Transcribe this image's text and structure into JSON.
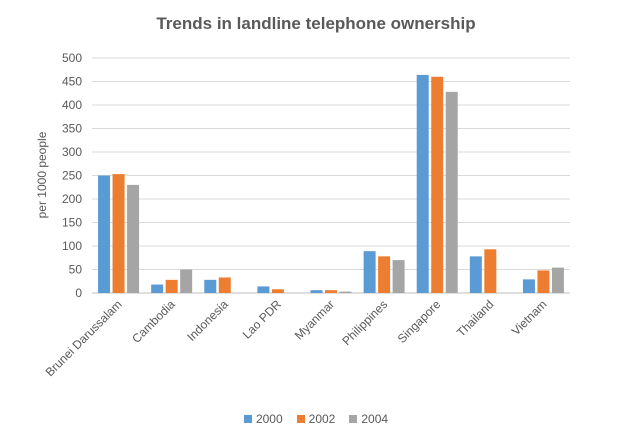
{
  "chart_data": {
    "type": "bar",
    "title": "Trends in landline telephone ownership",
    "xlabel": "",
    "ylabel": "per 1000 people",
    "ylim": [
      0,
      500
    ],
    "yticks": [
      0,
      50,
      100,
      150,
      200,
      250,
      300,
      350,
      400,
      450,
      500
    ],
    "grid": true,
    "legend_placement": "bottom",
    "categories": [
      "Brunei Darussalam",
      "Cambodia",
      "Indonesia",
      "Lao PDR",
      "Myanmar",
      "Philippines",
      "Singapore",
      "Thailand",
      "Vietnam"
    ],
    "series": [
      {
        "name": "2000",
        "color": "#5B9BD5",
        "values": [
          250,
          18,
          28,
          14,
          6,
          89,
          464,
          78,
          29
        ]
      },
      {
        "name": "2002",
        "color": "#ED7D31",
        "values": [
          253,
          28,
          33,
          8,
          6,
          78,
          460,
          93,
          48
        ]
      },
      {
        "name": "2004",
        "color": "#A5A5A5",
        "values": [
          230,
          50,
          0,
          0,
          3,
          70,
          428,
          0,
          54
        ]
      }
    ]
  }
}
